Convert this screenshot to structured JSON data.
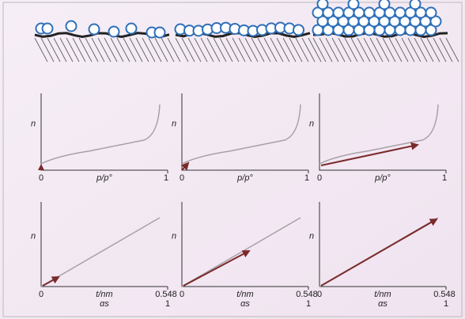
{
  "panels": [
    {
      "isotherm": {
        "y_label": "n",
        "x_label": "p/p°",
        "x_start": "0",
        "x_end": "1"
      },
      "t_plot": {
        "y_label": "n",
        "x_label": "t/nm",
        "x_start": "0",
        "x_end": "0.548",
        "x2_label": "αs",
        "x2_end": "1"
      }
    },
    {
      "isotherm": {
        "y_label": "n",
        "x_label": "p/p°",
        "x_start": "0",
        "x_end": "1"
      },
      "t_plot": {
        "y_label": "n",
        "x_label": "t/nm",
        "x_start": "0",
        "x_end": "0.548",
        "x2_label": "αs",
        "x2_end": "1"
      }
    },
    {
      "isotherm": {
        "y_label": "n",
        "x_label": "p/p°",
        "x_start": "0",
        "x_end": "1"
      },
      "t_plot": {
        "y_label": "n",
        "x_label": "t/nm",
        "x_start": "0",
        "x_end": "0.548",
        "x2_label": "αs",
        "x2_end": "1"
      }
    }
  ]
}
